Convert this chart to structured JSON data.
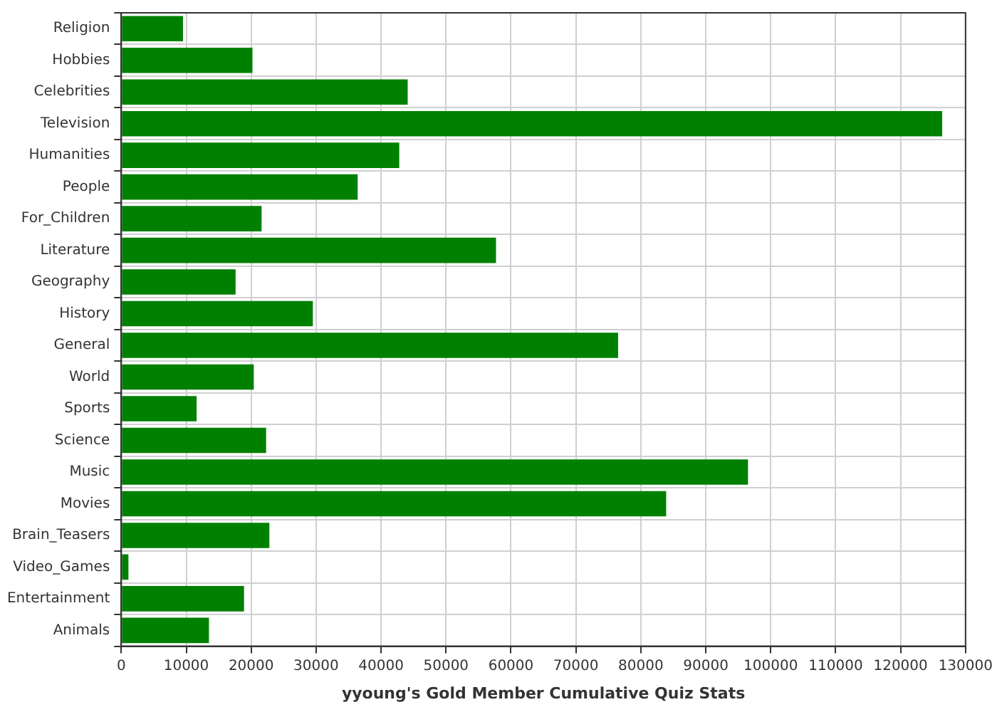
{
  "chart_data": {
    "type": "bar",
    "orientation": "horizontal",
    "xlabel": "yyoung's Gold Member Cumulative Quiz Stats",
    "categories": [
      "Religion",
      "Hobbies",
      "Celebrities",
      "Television",
      "Humanities",
      "People",
      "For_Children",
      "Literature",
      "Geography",
      "History",
      "General",
      "World",
      "Sports",
      "Science",
      "Music",
      "Movies",
      "Brain_Teasers",
      "Video_Games",
      "Entertainment",
      "Animals"
    ],
    "values": [
      9500,
      20200,
      44100,
      126400,
      42800,
      36400,
      21600,
      57700,
      17600,
      29500,
      76500,
      20400,
      11600,
      22300,
      96500,
      83900,
      22800,
      1100,
      18900,
      13500
    ],
    "color": "#008000",
    "xlim": [
      0,
      130000
    ],
    "xticks": [
      0,
      10000,
      20000,
      30000,
      40000,
      50000,
      60000,
      70000,
      80000,
      90000,
      100000,
      110000,
      120000,
      130000
    ],
    "grid": true,
    "legend": false
  }
}
